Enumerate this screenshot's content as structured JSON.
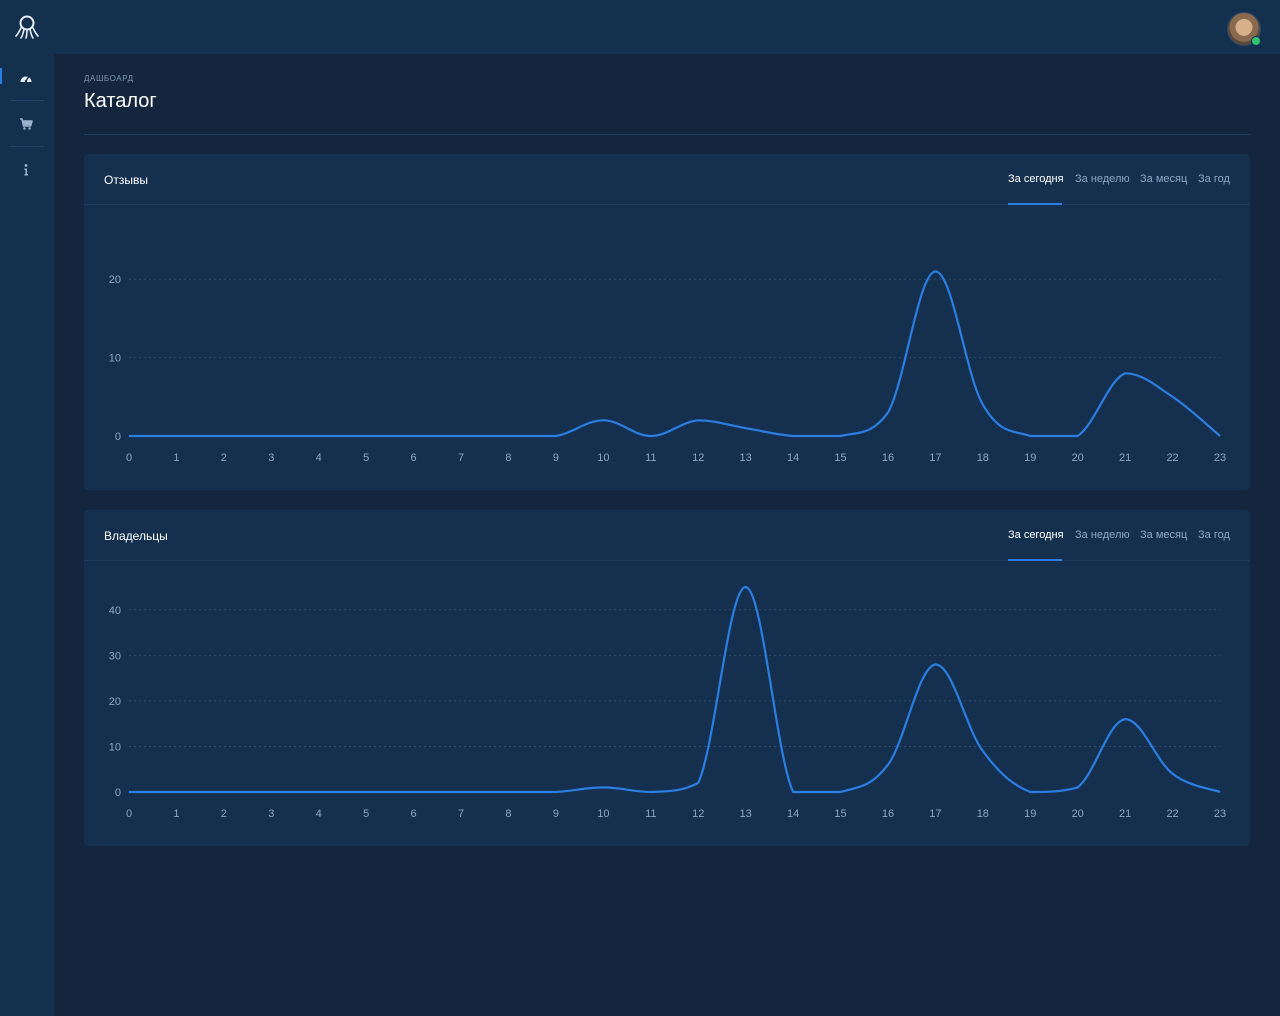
{
  "app": {
    "logo_icon": "octopus-logo-icon",
    "accent_color": "#2a7de1"
  },
  "sidebar": {
    "items": [
      {
        "name": "dashboard",
        "icon": "speedometer-icon",
        "active": true
      },
      {
        "name": "catalog",
        "icon": "cart-icon",
        "active": false
      },
      {
        "name": "info",
        "icon": "info-icon",
        "active": false
      }
    ]
  },
  "page": {
    "breadcrumb": "ДАШБОАРД",
    "title": "Каталог"
  },
  "panels": [
    {
      "title": "Отзывы",
      "tabs": [
        "За сегодня",
        "За неделю",
        "За месяц",
        "За год"
      ],
      "active_tab": 0
    },
    {
      "title": "Владельцы",
      "tabs": [
        "За сегодня",
        "За неделю",
        "За месяц",
        "За год"
      ],
      "active_tab": 0
    }
  ],
  "chart_data": [
    {
      "type": "line",
      "title": "Отзывы",
      "x": [
        0,
        1,
        2,
        3,
        4,
        5,
        6,
        7,
        8,
        9,
        10,
        11,
        12,
        13,
        14,
        15,
        16,
        17,
        18,
        19,
        20,
        21,
        22,
        23
      ],
      "series": [
        {
          "values": [
            0,
            0,
            0,
            0,
            0,
            0,
            0,
            0,
            0,
            0,
            2,
            0,
            2,
            1,
            0,
            0,
            3,
            21,
            4,
            0,
            0,
            8,
            5,
            0
          ],
          "color": "#2a7de1"
        }
      ],
      "ylim": [
        0,
        25
      ],
      "yticks": [
        0,
        10,
        20
      ],
      "grid": true
    },
    {
      "type": "line",
      "title": "Владельцы",
      "x": [
        0,
        1,
        2,
        3,
        4,
        5,
        6,
        7,
        8,
        9,
        10,
        11,
        12,
        13,
        14,
        15,
        16,
        17,
        18,
        19,
        20,
        21,
        22,
        23
      ],
      "series": [
        {
          "values": [
            0,
            0,
            0,
            0,
            0,
            0,
            0,
            0,
            0,
            0,
            1,
            0,
            2,
            45,
            0,
            0,
            6,
            28,
            9,
            0,
            1,
            16,
            4,
            0
          ],
          "color": "#2a7de1"
        }
      ],
      "ylim": [
        0,
        45
      ],
      "yticks": [
        0,
        10,
        20,
        30,
        40
      ],
      "grid": true
    }
  ]
}
